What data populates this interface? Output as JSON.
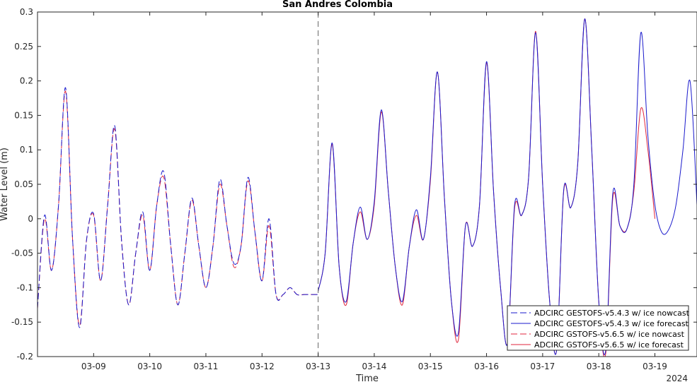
{
  "chart_data": {
    "type": "line",
    "title": "San Andres Colombia",
    "xlabel": "Time",
    "ylabel": "Water Level (m)",
    "year_label": "2024",
    "xlim": [
      "2024-03-08T00:00",
      "2024-03-19T18:00"
    ],
    "ylim": [
      -0.2,
      0.3
    ],
    "yticks": [
      -0.2,
      -0.15,
      -0.1,
      -0.05,
      0,
      0.05,
      0.1,
      0.15,
      0.2,
      0.25,
      0.3
    ],
    "ytick_labels": [
      "-0.2",
      "-0.15",
      "-0.1",
      "-0.05",
      "0",
      "0.05",
      "0.1",
      "0.15",
      "0.2",
      "0.25",
      "0.3"
    ],
    "xticks": [
      "2024-03-09",
      "2024-03-10",
      "2024-03-11",
      "2024-03-12",
      "2024-03-13",
      "2024-03-14",
      "2024-03-15",
      "2024-03-16",
      "2024-03-17",
      "2024-03-18",
      "2024-03-19"
    ],
    "xtick_labels": [
      "03-09",
      "03-10",
      "03-11",
      "03-12",
      "03-13",
      "03-14",
      "03-15",
      "03-16",
      "03-17",
      "03-18",
      "03-19"
    ],
    "forecast_start": "2024-03-13T00:00",
    "grid": false,
    "legend_position": "bottom-right",
    "series": [
      {
        "name": "ADCIRC GESTOFS-v5.4.3 w/ ice nowcast",
        "color": "#1a1acc",
        "dash": "dashed",
        "x": [
          "2024-03-08T00:00",
          "2024-03-08T03:00",
          "2024-03-08T06:00",
          "2024-03-08T09:00",
          "2024-03-08T12:00",
          "2024-03-08T15:00",
          "2024-03-08T18:00",
          "2024-03-08T21:00",
          "2024-03-09T00:00",
          "2024-03-09T03:00",
          "2024-03-09T06:00",
          "2024-03-09T09:00",
          "2024-03-09T12:00",
          "2024-03-09T15:00",
          "2024-03-09T18:00",
          "2024-03-09T21:00",
          "2024-03-10T00:00",
          "2024-03-10T03:00",
          "2024-03-10T06:00",
          "2024-03-10T09:00",
          "2024-03-10T12:00",
          "2024-03-10T15:00",
          "2024-03-10T18:00",
          "2024-03-10T21:00",
          "2024-03-11T00:00",
          "2024-03-11T03:00",
          "2024-03-11T06:00",
          "2024-03-11T09:00",
          "2024-03-11T12:00",
          "2024-03-11T15:00",
          "2024-03-11T18:00",
          "2024-03-11T21:00",
          "2024-03-12T00:00",
          "2024-03-12T03:00",
          "2024-03-12T06:00",
          "2024-03-12T09:00",
          "2024-03-12T12:00",
          "2024-03-12T15:00",
          "2024-03-12T18:00",
          "2024-03-12T21:00",
          "2024-03-13T00:00"
        ],
        "y": [
          -0.13,
          0.005,
          -0.075,
          0.02,
          0.19,
          -0.03,
          -0.158,
          -0.03,
          0.007,
          -0.09,
          0.02,
          0.135,
          -0.035,
          -0.125,
          -0.05,
          0.01,
          -0.075,
          0.02,
          0.068,
          -0.04,
          -0.125,
          -0.05,
          0.03,
          -0.04,
          -0.1,
          -0.04,
          0.057,
          -0.01,
          -0.065,
          -0.04,
          0.06,
          -0.02,
          -0.09,
          0.0,
          -0.11,
          -0.11,
          -0.1,
          -0.11,
          -0.11,
          -0.11,
          -0.11
        ]
      },
      {
        "name": "ADCIRC GESTOFS-v5.4.3 w/ ice forecast",
        "color": "#1a1acc",
        "dash": "solid",
        "x": [
          "2024-03-13T00:00",
          "2024-03-13T03:00",
          "2024-03-13T06:00",
          "2024-03-13T09:00",
          "2024-03-13T12:00",
          "2024-03-13T15:00",
          "2024-03-13T18:00",
          "2024-03-13T21:00",
          "2024-03-14T00:00",
          "2024-03-14T03:00",
          "2024-03-14T06:00",
          "2024-03-14T09:00",
          "2024-03-14T12:00",
          "2024-03-14T15:00",
          "2024-03-14T18:00",
          "2024-03-14T21:00",
          "2024-03-15T00:00",
          "2024-03-15T03:00",
          "2024-03-15T06:00",
          "2024-03-15T09:00",
          "2024-03-15T12:00",
          "2024-03-15T15:00",
          "2024-03-15T18:00",
          "2024-03-15T21:00",
          "2024-03-16T00:00",
          "2024-03-16T03:00",
          "2024-03-16T06:00",
          "2024-03-16T09:00",
          "2024-03-16T12:00",
          "2024-03-16T15:00",
          "2024-03-16T18:00",
          "2024-03-16T21:00",
          "2024-03-17T00:00",
          "2024-03-17T03:00",
          "2024-03-17T06:00",
          "2024-03-17T09:00",
          "2024-03-17T12:00",
          "2024-03-17T15:00",
          "2024-03-17T18:00",
          "2024-03-17T21:00",
          "2024-03-18T00:00",
          "2024-03-18T03:00",
          "2024-03-18T06:00",
          "2024-03-18T09:00",
          "2024-03-18T12:00",
          "2024-03-18T15:00",
          "2024-03-18T18:00",
          "2024-03-18T21:00",
          "2024-03-19T00:00",
          "2024-03-19T03:00",
          "2024-03-19T06:00",
          "2024-03-19T09:00",
          "2024-03-19T12:00",
          "2024-03-19T15:00",
          "2024-03-19T18:00"
        ],
        "y": [
          -0.105,
          -0.05,
          0.11,
          -0.07,
          -0.12,
          -0.035,
          0.017,
          -0.03,
          0.025,
          0.158,
          0.04,
          -0.07,
          -0.12,
          -0.04,
          0.013,
          -0.03,
          0.06,
          0.213,
          0.03,
          -0.12,
          -0.165,
          -0.01,
          -0.04,
          0.02,
          0.228,
          0.04,
          -0.1,
          -0.18,
          0.02,
          0.005,
          0.06,
          0.27,
          0.05,
          -0.12,
          -0.19,
          0.042,
          0.016,
          0.08,
          0.29,
          0.1,
          -0.12,
          -0.19,
          0.037,
          -0.01,
          -0.015,
          0.05,
          0.27,
          0.12,
          0.02,
          -0.02,
          -0.015,
          0.02,
          0.1,
          0.2,
          0.02
        ]
      },
      {
        "name": "ADCIRC GSTOFS-v5.6.5 w/ ice nowcast",
        "color": "#e0263c",
        "dash": "dashed",
        "x": [
          "2024-03-08T00:00",
          "2024-03-08T03:00",
          "2024-03-08T06:00",
          "2024-03-08T09:00",
          "2024-03-08T12:00",
          "2024-03-08T15:00",
          "2024-03-08T18:00",
          "2024-03-08T21:00",
          "2024-03-09T00:00",
          "2024-03-09T03:00",
          "2024-03-09T06:00",
          "2024-03-09T09:00",
          "2024-03-09T12:00",
          "2024-03-09T15:00",
          "2024-03-09T18:00",
          "2024-03-09T21:00",
          "2024-03-10T00:00",
          "2024-03-10T03:00",
          "2024-03-10T06:00",
          "2024-03-10T09:00",
          "2024-03-10T12:00",
          "2024-03-10T15:00",
          "2024-03-10T18:00",
          "2024-03-10T21:00",
          "2024-03-11T00:00",
          "2024-03-11T03:00",
          "2024-03-11T06:00",
          "2024-03-11T09:00",
          "2024-03-11T12:00",
          "2024-03-11T15:00",
          "2024-03-11T18:00",
          "2024-03-11T21:00",
          "2024-03-12T00:00",
          "2024-03-12T03:00",
          "2024-03-12T06:00",
          "2024-03-12T09:00",
          "2024-03-12T12:00",
          "2024-03-12T15:00",
          "2024-03-12T18:00",
          "2024-03-12T21:00",
          "2024-03-13T00:00"
        ],
        "y": [
          -0.13,
          0.0,
          -0.075,
          0.02,
          0.185,
          -0.03,
          -0.155,
          -0.03,
          0.005,
          -0.09,
          0.02,
          0.13,
          -0.035,
          -0.125,
          -0.05,
          0.005,
          -0.075,
          0.02,
          0.06,
          -0.04,
          -0.125,
          -0.05,
          0.027,
          -0.04,
          -0.1,
          -0.04,
          0.05,
          -0.01,
          -0.07,
          -0.04,
          0.055,
          -0.02,
          -0.09,
          -0.01,
          -0.11,
          -0.11,
          -0.1,
          -0.11,
          -0.11,
          -0.11,
          -0.11
        ]
      },
      {
        "name": "ADCIRC GSTOFS-v5.6.5 w/ ice forecast",
        "color": "#e0263c",
        "dash": "solid",
        "x": [
          "2024-03-13T00:00",
          "2024-03-13T03:00",
          "2024-03-13T06:00",
          "2024-03-13T09:00",
          "2024-03-13T12:00",
          "2024-03-13T15:00",
          "2024-03-13T18:00",
          "2024-03-13T21:00",
          "2024-03-14T00:00",
          "2024-03-14T03:00",
          "2024-03-14T06:00",
          "2024-03-14T09:00",
          "2024-03-14T12:00",
          "2024-03-14T15:00",
          "2024-03-14T18:00",
          "2024-03-14T21:00",
          "2024-03-15T00:00",
          "2024-03-15T03:00",
          "2024-03-15T06:00",
          "2024-03-15T09:00",
          "2024-03-15T12:00",
          "2024-03-15T15:00",
          "2024-03-15T18:00",
          "2024-03-15T21:00",
          "2024-03-16T00:00",
          "2024-03-16T03:00",
          "2024-03-16T06:00",
          "2024-03-16T09:00",
          "2024-03-16T12:00",
          "2024-03-16T15:00",
          "2024-03-16T18:00",
          "2024-03-16T21:00",
          "2024-03-17T00:00",
          "2024-03-17T03:00",
          "2024-03-17T06:00",
          "2024-03-17T09:00",
          "2024-03-17T12:00",
          "2024-03-17T15:00",
          "2024-03-17T18:00",
          "2024-03-17T21:00",
          "2024-03-18T00:00",
          "2024-03-18T03:00",
          "2024-03-18T06:00",
          "2024-03-18T09:00",
          "2024-03-18T12:00",
          "2024-03-18T15:00",
          "2024-03-18T18:00",
          "2024-03-18T21:00",
          "2024-03-19T00:00"
        ],
        "y": [
          -0.105,
          -0.05,
          0.108,
          -0.07,
          -0.125,
          -0.035,
          0.01,
          -0.03,
          0.02,
          0.155,
          0.04,
          -0.07,
          -0.125,
          -0.04,
          0.005,
          -0.03,
          0.055,
          0.213,
          0.03,
          -0.12,
          -0.175,
          -0.01,
          -0.04,
          0.02,
          0.226,
          0.04,
          -0.1,
          -0.18,
          0.015,
          0.005,
          0.06,
          0.272,
          0.05,
          -0.12,
          -0.19,
          0.04,
          0.016,
          0.08,
          0.29,
          0.1,
          -0.12,
          -0.195,
          0.03,
          -0.01,
          -0.015,
          0.04,
          0.16,
          0.1,
          0.0
        ]
      }
    ]
  }
}
